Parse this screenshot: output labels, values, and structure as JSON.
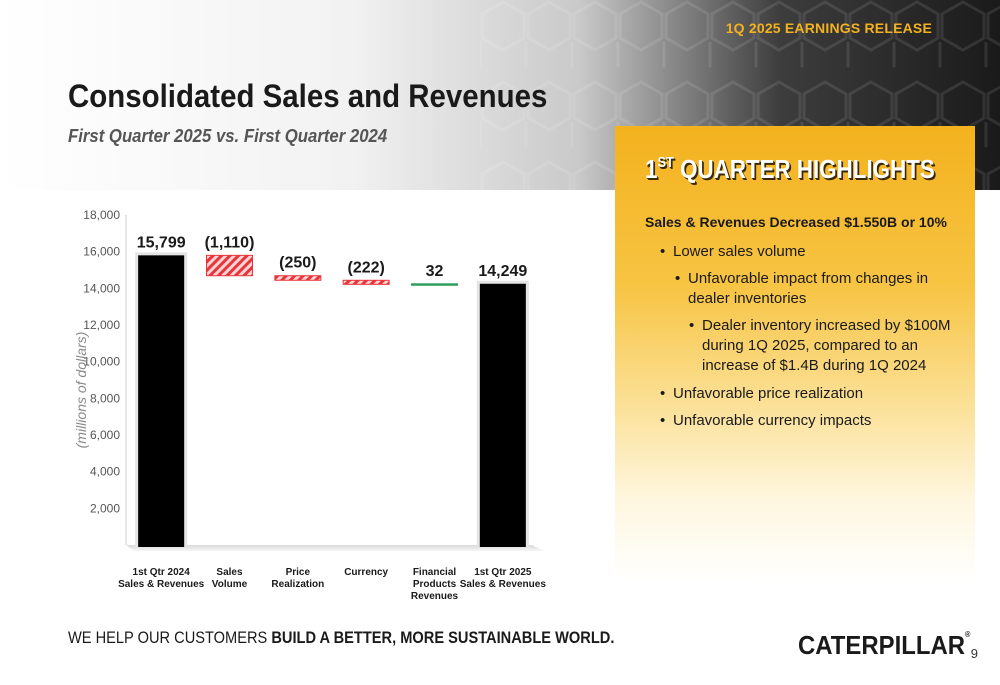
{
  "header": {
    "release_tag": "1Q 2025 EARNINGS RELEASE",
    "title": "Consolidated Sales and Revenues",
    "subtitle": "First Quarter 2025 vs. First Quarter 2024"
  },
  "highlights": {
    "title_prefix": "1",
    "title_sup": "ST",
    "title_rest": " QUARTER HIGHLIGHTS",
    "headline": "Sales & Revenues Decreased $1.550B or 10%",
    "bullets": [
      "Lower sales volume",
      "Unfavorable impact from changes in dealer inventories",
      "Dealer inventory increased by $100M during 1Q 2025, compared to an increase of $1.4B during 1Q 2024",
      "Unfavorable price realization",
      "Unfavorable currency impacts"
    ]
  },
  "chart_data": {
    "type": "bar",
    "subtype": "waterfall",
    "ylabel": "(millions of dollars)",
    "ylim": [
      0,
      18000
    ],
    "yticks": [
      2000,
      4000,
      6000,
      8000,
      10000,
      12000,
      14000,
      16000,
      18000
    ],
    "ytick_labels": [
      "2,000",
      "4,000",
      "6,000",
      "8,000",
      "10,000",
      "12,000",
      "14,000",
      "16,000",
      "18,000"
    ],
    "categories": [
      {
        "line1": "1st Qtr 2024",
        "line2": "Sales & Revenues",
        "line3": "",
        "sup": "st",
        "pre": "1",
        "post": " Qtr 2024"
      },
      {
        "line1": "Sales",
        "line2": "Volume",
        "line3": ""
      },
      {
        "line1": "Price",
        "line2": "Realization",
        "line3": ""
      },
      {
        "line1": "Currency",
        "line2": "",
        "line3": ""
      },
      {
        "line1": "Financial",
        "line2": "Products",
        "line3": "Revenues"
      },
      {
        "line1": "1st Qtr 2025",
        "line2": "Sales & Revenues",
        "line3": "",
        "sup": "st",
        "pre": "1",
        "post": " Qtr 2025"
      }
    ],
    "values": [
      15799,
      -1110,
      -250,
      -222,
      32,
      14249
    ],
    "bar_kinds": [
      "total",
      "delta",
      "delta",
      "delta",
      "delta",
      "total"
    ],
    "data_labels": [
      "15,799",
      "(1,110)",
      "(250)",
      "(222)",
      "32",
      "14,249"
    ],
    "colors": {
      "total": "#000000",
      "decrease": "#e8343b",
      "increase": "#2e9e5b",
      "axis_text": "#555555"
    }
  },
  "footer": {
    "slogan_light": "WE HELP OUR CUSTOMERS ",
    "slogan_bold": "BUILD A BETTER, MORE SUSTAINABLE WORLD.",
    "logo_a": "CAT",
    "logo_b": "ERPILLAR",
    "logo_reg": "®",
    "page_number": "9"
  }
}
